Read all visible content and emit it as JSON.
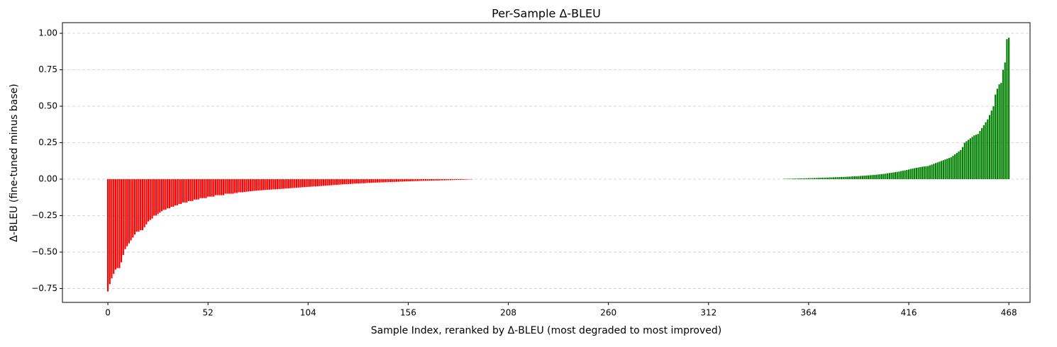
{
  "chart_data": {
    "type": "bar",
    "title": "Per-Sample Δ-BLEU",
    "x_label": "Sample Index, reranked by Δ-BLEU (most degraded to most improved)",
    "y_label": "Δ-BLEU (fine-tuned minus base)",
    "positive_color": "green",
    "negative_color": "red",
    "xlim": [
      -23.6,
      479
    ],
    "ylim": [
      -0.845,
      1.073
    ],
    "xticks": [
      0,
      52,
      104,
      156,
      208,
      260,
      312,
      364,
      416,
      468
    ],
    "yticks": [
      {
        "value": -0.75,
        "label": "−0.75"
      },
      {
        "value": -0.5,
        "label": "−0.50"
      },
      {
        "value": -0.25,
        "label": "−0.25"
      },
      {
        "value": 0,
        "label": "0.00"
      },
      {
        "value": 0.25,
        "label": "0.25"
      },
      {
        "value": 0.5,
        "label": "0.50"
      },
      {
        "value": 0.75,
        "label": "0.75"
      },
      {
        "value": 1,
        "label": "1.00"
      }
    ],
    "grid": true,
    "values": [
      -0.77,
      -0.72,
      -0.68,
      -0.65,
      -0.62,
      -0.61,
      -0.61,
      -0.57,
      -0.52,
      -0.48,
      -0.46,
      -0.44,
      -0.42,
      -0.4,
      -0.38,
      -0.36,
      -0.36,
      -0.35,
      -0.35,
      -0.33,
      -0.31,
      -0.29,
      -0.28,
      -0.27,
      -0.25,
      -0.25,
      -0.24,
      -0.23,
      -0.22,
      -0.21,
      -0.21,
      -0.2,
      -0.2,
      -0.19,
      -0.19,
      -0.18,
      -0.18,
      -0.17,
      -0.17,
      -0.16,
      -0.16,
      -0.16,
      -0.15,
      -0.15,
      -0.15,
      -0.14,
      -0.14,
      -0.14,
      -0.13,
      -0.13,
      -0.13,
      -0.13,
      -0.12,
      -0.12,
      -0.12,
      -0.12,
      -0.11,
      -0.11,
      -0.11,
      -0.11,
      -0.11,
      -0.1,
      -0.1,
      -0.1,
      -0.1,
      -0.1,
      -0.095,
      -0.095,
      -0.09,
      -0.09,
      -0.09,
      -0.088,
      -0.086,
      -0.085,
      -0.083,
      -0.082,
      -0.08,
      -0.079,
      -0.078,
      -0.077,
      -0.076,
      -0.075,
      -0.074,
      -0.073,
      -0.072,
      -0.071,
      -0.07,
      -0.07,
      -0.069,
      -0.068,
      -0.067,
      -0.066,
      -0.065,
      -0.064,
      -0.063,
      -0.062,
      -0.061,
      -0.06,
      -0.059,
      -0.058,
      -0.057,
      -0.056,
      -0.055,
      -0.054,
      -0.053,
      -0.052,
      -0.051,
      -0.05,
      -0.05,
      -0.049,
      -0.048,
      -0.047,
      -0.046,
      -0.045,
      -0.044,
      -0.043,
      -0.042,
      -0.041,
      -0.04,
      -0.039,
      -0.038,
      -0.037,
      -0.036,
      -0.035,
      -0.035,
      -0.034,
      -0.033,
      -0.032,
      -0.031,
      -0.03,
      -0.03,
      -0.029,
      -0.028,
      -0.028,
      -0.027,
      -0.026,
      -0.026,
      -0.025,
      -0.024,
      -0.024,
      -0.023,
      -0.023,
      -0.022,
      -0.022,
      -0.021,
      -0.021,
      -0.02,
      -0.02,
      -0.019,
      -0.019,
      -0.018,
      -0.018,
      -0.017,
      -0.017,
      -0.016,
      -0.016,
      -0.015,
      -0.015,
      -0.014,
      -0.014,
      -0.013,
      -0.013,
      -0.012,
      -0.012,
      -0.011,
      -0.011,
      -0.011,
      -0.01,
      -0.01,
      -0.01,
      -0.009,
      -0.009,
      -0.009,
      -0.008,
      -0.008,
      -0.008,
      -0.007,
      -0.007,
      -0.007,
      -0.006,
      -0.006,
      -0.005,
      -0.005,
      -0.005,
      -0.004,
      -0.004,
      -0.003,
      -0.003,
      -0.002,
      -0.002,
      0,
      0,
      0,
      0,
      0,
      0,
      0,
      0,
      0,
      0,
      0,
      0,
      0,
      0,
      0,
      0,
      0,
      0,
      0,
      0,
      0,
      0,
      0,
      0,
      0,
      0,
      0,
      0,
      0,
      0,
      0,
      0,
      0,
      0,
      0,
      0,
      0,
      0,
      0,
      0,
      0,
      0,
      0,
      0,
      0,
      0,
      0,
      0,
      0,
      0,
      0,
      0,
      0,
      0,
      0,
      0,
      0,
      0,
      0,
      0,
      0,
      0,
      0,
      0,
      0,
      0,
      0,
      0,
      0,
      0,
      0,
      0,
      0,
      0,
      0,
      0,
      0,
      0,
      0,
      0,
      0,
      0,
      0,
      0,
      0,
      0,
      0,
      0,
      0,
      0,
      0,
      0,
      0,
      0,
      0,
      0,
      0,
      0,
      0,
      0,
      0,
      0,
      0,
      0,
      0,
      0,
      0,
      0,
      0,
      0,
      0,
      0,
      0,
      0,
      0,
      0,
      0,
      0,
      0,
      0,
      0,
      0,
      0,
      0,
      0,
      0,
      0,
      0,
      0,
      0,
      0,
      0,
      0,
      0,
      0,
      0,
      0,
      0,
      0,
      0,
      0,
      0,
      0,
      0,
      0,
      0,
      0,
      0,
      0,
      0,
      0,
      0,
      0,
      0,
      0,
      0,
      0,
      0,
      0,
      0,
      0,
      0.002,
      0.002,
      0.003,
      0.003,
      0.003,
      0.004,
      0.004,
      0.004,
      0.005,
      0.005,
      0.005,
      0.006,
      0.006,
      0.007,
      0.007,
      0.007,
      0.008,
      0.008,
      0.009,
      0.009,
      0.01,
      0.01,
      0.011,
      0.011,
      0.012,
      0.012,
      0.013,
      0.013,
      0.014,
      0.014,
      0.015,
      0.015,
      0.016,
      0.017,
      0.017,
      0.018,
      0.019,
      0.02,
      0.02,
      0.021,
      0.022,
      0.023,
      0.024,
      0.025,
      0.026,
      0.027,
      0.028,
      0.029,
      0.03,
      0.032,
      0.033,
      0.035,
      0.036,
      0.038,
      0.04,
      0.042,
      0.044,
      0.046,
      0.048,
      0.05,
      0.052,
      0.055,
      0.058,
      0.06,
      0.063,
      0.066,
      0.07,
      0.072,
      0.075,
      0.078,
      0.08,
      0.083,
      0.085,
      0.087,
      0.088,
      0.09,
      0.095,
      0.1,
      0.105,
      0.11,
      0.115,
      0.12,
      0.125,
      0.13,
      0.135,
      0.14,
      0.145,
      0.15,
      0.16,
      0.17,
      0.18,
      0.19,
      0.2,
      0.22,
      0.25,
      0.26,
      0.27,
      0.28,
      0.29,
      0.3,
      0.305,
      0.31,
      0.33,
      0.35,
      0.37,
      0.39,
      0.41,
      0.44,
      0.47,
      0.5,
      0.58,
      0.62,
      0.65,
      0.66,
      0.75,
      0.8,
      0.96,
      0.97
    ]
  }
}
